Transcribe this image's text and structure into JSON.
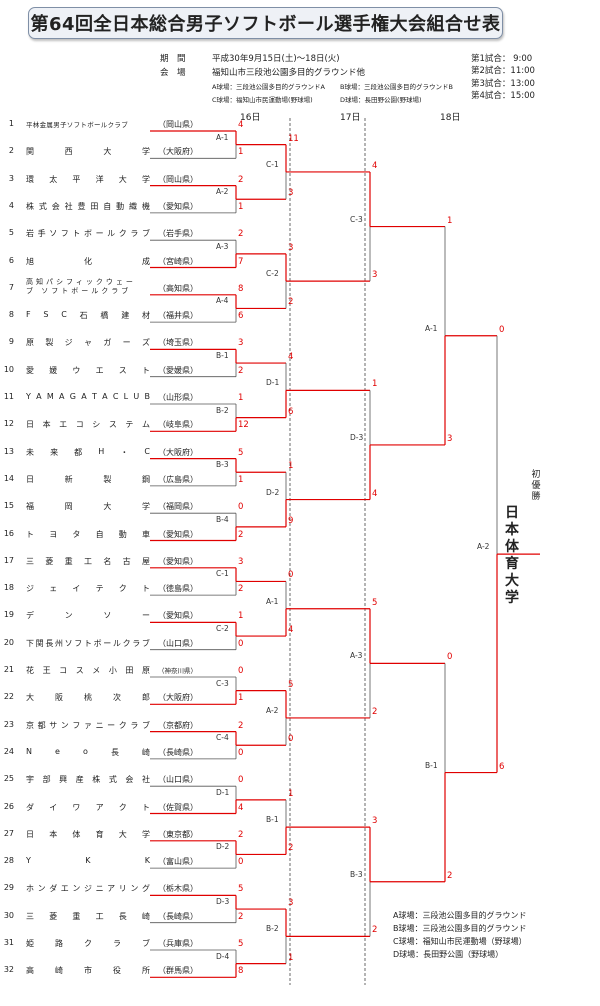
{
  "title": "第64回全日本総合男子ソフトボール選手権大会組合せ表",
  "info": {
    "period_label": "期　間",
    "period": "平成30年9月15日(土)〜18日(火)",
    "venue_label": "会　場",
    "venue": "福知山市三段池公園多目的グラウンド他",
    "fields": [
      "A球場：三段池公園多目的グラウンドA",
      "B球場：三段池公園多目的グラウンドB",
      "C球場：福知山市民運動場(野球場)",
      "D球場：長田野公園(野球場)"
    ]
  },
  "schedule": [
    "第1試合： 9:00",
    "第2試合：11:00",
    "第3試合：13:00",
    "第4試合：15:00"
  ],
  "days": [
    "16日",
    "17日",
    "18日"
  ],
  "teams": [
    {
      "no": "1",
      "name": "平林金属男子ソフトボールクラブ",
      "pref": "（岡山県）"
    },
    {
      "no": "2",
      "name": "関西大学",
      "pref": "（大阪府）"
    },
    {
      "no": "3",
      "name": "環太平洋大学",
      "pref": "（岡山県）"
    },
    {
      "no": "4",
      "name": "株式会社豊田自動織機",
      "pref": "（愛知県）"
    },
    {
      "no": "5",
      "name": "岩手ソフトボールクラブ",
      "pref": "（岩手県）"
    },
    {
      "no": "6",
      "name": "旭化成",
      "pref": "（宮崎県）"
    },
    {
      "no": "7",
      "name": "高知パシフィックウェーブ ソフトボールクラブ",
      "pref": "（高知県）"
    },
    {
      "no": "8",
      "name": "FSC石橋建材",
      "pref": "（福井県）"
    },
    {
      "no": "9",
      "name": "原製ジャガーズ",
      "pref": "（埼玉県）"
    },
    {
      "no": "10",
      "name": "愛媛ウエスト",
      "pref": "（愛媛県）"
    },
    {
      "no": "11",
      "name": "YAMAGATACLUB",
      "pref": "（山形県）"
    },
    {
      "no": "12",
      "name": "日本エコシステム",
      "pref": "（岐阜県）"
    },
    {
      "no": "13",
      "name": "未来都H・C",
      "pref": "（大阪府）"
    },
    {
      "no": "14",
      "name": "日新製鋼",
      "pref": "（広島県）"
    },
    {
      "no": "15",
      "name": "福岡大学",
      "pref": "（福岡県）"
    },
    {
      "no": "16",
      "name": "トヨタ自動車",
      "pref": "（愛知県）"
    },
    {
      "no": "17",
      "name": "三菱重工名古屋",
      "pref": "（愛知県）"
    },
    {
      "no": "18",
      "name": "ジェイテクト",
      "pref": "（徳島県）"
    },
    {
      "no": "19",
      "name": "デンソー",
      "pref": "（愛知県）"
    },
    {
      "no": "20",
      "name": "下関長州ソフトボールクラブ",
      "pref": "（山口県）"
    },
    {
      "no": "21",
      "name": "花王コスメ小田原",
      "pref": "（神奈川県）"
    },
    {
      "no": "22",
      "name": "大阪桃次郎",
      "pref": "（大阪府）"
    },
    {
      "no": "23",
      "name": "京都サンファニークラブ",
      "pref": "（京都府）"
    },
    {
      "no": "24",
      "name": "Neo長崎",
      "pref": "（長崎県）"
    },
    {
      "no": "25",
      "name": "宇部興産株式会社",
      "pref": "（山口県）"
    },
    {
      "no": "26",
      "name": "ダイワアクト",
      "pref": "（佐賀県）"
    },
    {
      "no": "27",
      "name": "日本体育大学",
      "pref": "（東京都）"
    },
    {
      "no": "28",
      "name": "YKK",
      "pref": "（富山県）"
    },
    {
      "no": "29",
      "name": "ホンダエンジニアリング",
      "pref": "（栃木県）"
    },
    {
      "no": "30",
      "name": "三菱重工長崎",
      "pref": "（長崎県）"
    },
    {
      "no": "31",
      "name": "姫路クラブ",
      "pref": "（兵庫県）"
    },
    {
      "no": "32",
      "name": "高崎市役所",
      "pref": "（群馬県）"
    }
  ],
  "round1": [
    {
      "label": "A-1",
      "s": [
        "4",
        "1"
      ],
      "w": 0
    },
    {
      "label": "A-2",
      "s": [
        "2",
        "1"
      ],
      "w": 0
    },
    {
      "label": "A-3",
      "s": [
        "2",
        "7"
      ],
      "w": 1
    },
    {
      "label": "A-4",
      "s": [
        "8",
        "6"
      ],
      "w": 0
    },
    {
      "label": "B-1",
      "s": [
        "3",
        "2"
      ],
      "w": 0
    },
    {
      "label": "B-2",
      "s": [
        "1",
        "12"
      ],
      "w": 1
    },
    {
      "label": "B-3",
      "s": [
        "5",
        "1"
      ],
      "w": 0
    },
    {
      "label": "B-4",
      "s": [
        "0",
        "2"
      ],
      "w": 1
    },
    {
      "label": "C-1",
      "s": [
        "3",
        "2"
      ],
      "w": 0
    },
    {
      "label": "C-2",
      "s": [
        "1",
        "0"
      ],
      "w": 0
    },
    {
      "label": "C-3",
      "s": [
        "0",
        "1"
      ],
      "w": 1
    },
    {
      "label": "C-4",
      "s": [
        "2",
        "0"
      ],
      "w": 0
    },
    {
      "label": "D-1",
      "s": [
        "0",
        "4"
      ],
      "w": 1
    },
    {
      "label": "D-2",
      "s": [
        "2",
        "0"
      ],
      "w": 0
    },
    {
      "label": "D-3",
      "s": [
        "5",
        "2"
      ],
      "w": 0
    },
    {
      "label": "D-4",
      "s": [
        "5",
        "8"
      ],
      "w": 1
    }
  ],
  "round2": [
    {
      "label": "C-1",
      "s": [
        "11",
        "3"
      ],
      "w": 0
    },
    {
      "label": "C-2",
      "s": [
        "3",
        "2"
      ],
      "w": 0
    },
    {
      "label": "D-1",
      "s": [
        "4",
        "6"
      ],
      "w": 1
    },
    {
      "label": "D-2",
      "s": [
        "1",
        "9"
      ],
      "w": 1
    },
    {
      "label": "A-1",
      "s": [
        "0",
        "4"
      ],
      "w": 1
    },
    {
      "label": "A-2",
      "s": [
        "5",
        "0"
      ],
      "w": 0
    },
    {
      "label": "B-1",
      "s": [
        "1",
        "2"
      ],
      "w": 1
    },
    {
      "label": "B-2",
      "s": [
        "3",
        "1"
      ],
      "w": 0
    }
  ],
  "round3": [
    {
      "label": "C-3",
      "s": [
        "4",
        "3"
      ],
      "w": 0
    },
    {
      "label": "D-3",
      "s": [
        "1",
        "4"
      ],
      "w": 1
    },
    {
      "label": "A-3",
      "s": [
        "5",
        "2"
      ],
      "w": 0
    },
    {
      "label": "B-3",
      "s": [
        "3",
        "2"
      ],
      "w": 0
    }
  ],
  "round4": [
    {
      "label": "A-1",
      "s": [
        "1",
        "3"
      ],
      "w": 1
    },
    {
      "label": "B-1",
      "s": [
        "0",
        "2"
      ],
      "w": 1
    }
  ],
  "final": {
    "label": "A-2",
    "s": [
      "0",
      "6"
    ],
    "w": 1
  },
  "champion_label": "初優勝",
  "champion": "日本体育大学",
  "legend": [
    "A球場：三段池公園多目的グラウンド",
    "B球場：三段池公園多目的グラウンド",
    "C球場：福知山市民運動場（野球場）",
    "D球場：長田野公園（野球場）"
  ],
  "colors": {
    "win": "#e00000",
    "line": "#555555"
  }
}
